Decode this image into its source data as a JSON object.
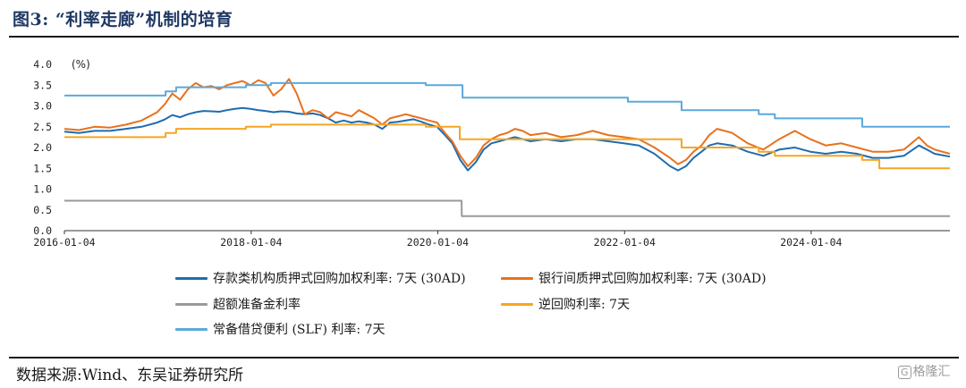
{
  "figure": {
    "title": "图3: “利率走廊”机制的培育",
    "source": "数据来源:Wind、东吴证券研究所",
    "watermark_box": "G",
    "watermark_text": "格隆汇"
  },
  "chart_data": {
    "type": "line",
    "xaxis": {
      "range": [
        "2016-01-04",
        "2025-06-30"
      ],
      "ticks": [
        "2016-01-04",
        "2018-01-04",
        "2020-01-04",
        "2022-01-04",
        "2024-01-04"
      ]
    },
    "yaxis": {
      "range": [
        0,
        4
      ],
      "ticks": [
        "0.0",
        "0.5",
        "1.0",
        "1.5",
        "2.0",
        "2.5",
        "3.0",
        "3.5",
        "4.0"
      ],
      "unit_label": "(%)"
    },
    "grid": false,
    "legend_position": "bottom",
    "series": [
      {
        "name": "存款类机构质押式回购加权利率: 7天 (30AD)",
        "color": "#1f6cb0",
        "points": [
          [
            "2016-01-04",
            2.38
          ],
          [
            "2016-03-01",
            2.35
          ],
          [
            "2016-05-01",
            2.4
          ],
          [
            "2016-07-01",
            2.4
          ],
          [
            "2016-09-01",
            2.45
          ],
          [
            "2016-11-01",
            2.5
          ],
          [
            "2017-01-01",
            2.6
          ],
          [
            "2017-02-01",
            2.68
          ],
          [
            "2017-03-01",
            2.78
          ],
          [
            "2017-04-01",
            2.73
          ],
          [
            "2017-05-01",
            2.8
          ],
          [
            "2017-06-01",
            2.85
          ],
          [
            "2017-07-01",
            2.88
          ],
          [
            "2017-08-01",
            2.87
          ],
          [
            "2017-09-01",
            2.86
          ],
          [
            "2017-10-01",
            2.9
          ],
          [
            "2017-11-01",
            2.93
          ],
          [
            "2017-12-01",
            2.95
          ],
          [
            "2018-01-01",
            2.93
          ],
          [
            "2018-02-01",
            2.9
          ],
          [
            "2018-03-01",
            2.88
          ],
          [
            "2018-04-01",
            2.85
          ],
          [
            "2018-05-01",
            2.87
          ],
          [
            "2018-06-01",
            2.86
          ],
          [
            "2018-07-01",
            2.82
          ],
          [
            "2018-08-01",
            2.8
          ],
          [
            "2018-09-01",
            2.82
          ],
          [
            "2018-10-01",
            2.78
          ],
          [
            "2018-11-01",
            2.7
          ],
          [
            "2018-12-01",
            2.6
          ],
          [
            "2019-01-01",
            2.65
          ],
          [
            "2019-02-01",
            2.6
          ],
          [
            "2019-03-01",
            2.63
          ],
          [
            "2019-04-01",
            2.6
          ],
          [
            "2019-05-01",
            2.55
          ],
          [
            "2019-06-01",
            2.45
          ],
          [
            "2019-07-01",
            2.6
          ],
          [
            "2019-08-01",
            2.62
          ],
          [
            "2019-09-01",
            2.65
          ],
          [
            "2019-10-01",
            2.68
          ],
          [
            "2019-11-01",
            2.62
          ],
          [
            "2019-12-01",
            2.55
          ],
          [
            "2020-01-01",
            2.5
          ],
          [
            "2020-02-01",
            2.3
          ],
          [
            "2020-03-01",
            2.1
          ],
          [
            "2020-04-01",
            1.7
          ],
          [
            "2020-05-01",
            1.45
          ],
          [
            "2020-06-01",
            1.65
          ],
          [
            "2020-07-01",
            1.95
          ],
          [
            "2020-08-01",
            2.1
          ],
          [
            "2020-09-01",
            2.15
          ],
          [
            "2020-10-01",
            2.2
          ],
          [
            "2020-11-01",
            2.25
          ],
          [
            "2020-12-01",
            2.2
          ],
          [
            "2021-01-01",
            2.15
          ],
          [
            "2021-03-01",
            2.2
          ],
          [
            "2021-05-01",
            2.15
          ],
          [
            "2021-07-01",
            2.2
          ],
          [
            "2021-09-01",
            2.2
          ],
          [
            "2021-11-01",
            2.15
          ],
          [
            "2022-01-01",
            2.1
          ],
          [
            "2022-03-01",
            2.05
          ],
          [
            "2022-05-01",
            1.85
          ],
          [
            "2022-07-01",
            1.55
          ],
          [
            "2022-08-01",
            1.45
          ],
          [
            "2022-09-01",
            1.55
          ],
          [
            "2022-10-01",
            1.75
          ],
          [
            "2022-11-01",
            1.9
          ],
          [
            "2022-12-01",
            2.05
          ],
          [
            "2023-01-01",
            2.1
          ],
          [
            "2023-03-01",
            2.05
          ],
          [
            "2023-05-01",
            1.9
          ],
          [
            "2023-07-01",
            1.8
          ],
          [
            "2023-09-01",
            1.95
          ],
          [
            "2023-11-01",
            2.0
          ],
          [
            "2024-01-01",
            1.9
          ],
          [
            "2024-03-01",
            1.85
          ],
          [
            "2024-05-01",
            1.9
          ],
          [
            "2024-07-01",
            1.85
          ],
          [
            "2024-09-01",
            1.75
          ],
          [
            "2024-11-01",
            1.75
          ],
          [
            "2025-01-01",
            1.8
          ],
          [
            "2025-03-01",
            2.05
          ],
          [
            "2025-04-01",
            1.95
          ],
          [
            "2025-05-01",
            1.85
          ],
          [
            "2025-06-30",
            1.78
          ]
        ]
      },
      {
        "name": "银行间质押式回购加权利率: 7天 (30AD)",
        "color": "#e8711d",
        "points": [
          [
            "2016-01-04",
            2.45
          ],
          [
            "2016-03-01",
            2.42
          ],
          [
            "2016-05-01",
            2.5
          ],
          [
            "2016-07-01",
            2.48
          ],
          [
            "2016-09-01",
            2.55
          ],
          [
            "2016-11-01",
            2.65
          ],
          [
            "2017-01-01",
            2.85
          ],
          [
            "2017-02-01",
            3.05
          ],
          [
            "2017-03-01",
            3.3
          ],
          [
            "2017-04-01",
            3.15
          ],
          [
            "2017-05-01",
            3.4
          ],
          [
            "2017-06-01",
            3.55
          ],
          [
            "2017-07-01",
            3.45
          ],
          [
            "2017-08-01",
            3.48
          ],
          [
            "2017-09-01",
            3.4
          ],
          [
            "2017-10-01",
            3.5
          ],
          [
            "2017-11-01",
            3.55
          ],
          [
            "2017-12-01",
            3.6
          ],
          [
            "2018-01-01",
            3.5
          ],
          [
            "2018-02-01",
            3.62
          ],
          [
            "2018-03-01",
            3.55
          ],
          [
            "2018-04-01",
            3.25
          ],
          [
            "2018-05-01",
            3.4
          ],
          [
            "2018-06-01",
            3.65
          ],
          [
            "2018-07-01",
            3.3
          ],
          [
            "2018-08-01",
            2.8
          ],
          [
            "2018-09-01",
            2.9
          ],
          [
            "2018-10-01",
            2.85
          ],
          [
            "2018-11-01",
            2.7
          ],
          [
            "2018-12-01",
            2.85
          ],
          [
            "2019-01-01",
            2.8
          ],
          [
            "2019-02-01",
            2.75
          ],
          [
            "2019-03-01",
            2.9
          ],
          [
            "2019-04-01",
            2.8
          ],
          [
            "2019-05-01",
            2.7
          ],
          [
            "2019-06-01",
            2.55
          ],
          [
            "2019-07-01",
            2.7
          ],
          [
            "2019-08-01",
            2.75
          ],
          [
            "2019-09-01",
            2.8
          ],
          [
            "2019-10-01",
            2.75
          ],
          [
            "2019-11-01",
            2.7
          ],
          [
            "2019-12-01",
            2.65
          ],
          [
            "2020-01-01",
            2.6
          ],
          [
            "2020-02-01",
            2.35
          ],
          [
            "2020-03-01",
            2.15
          ],
          [
            "2020-04-01",
            1.8
          ],
          [
            "2020-05-01",
            1.55
          ],
          [
            "2020-06-01",
            1.75
          ],
          [
            "2020-07-01",
            2.05
          ],
          [
            "2020-08-01",
            2.2
          ],
          [
            "2020-09-01",
            2.3
          ],
          [
            "2020-10-01",
            2.35
          ],
          [
            "2020-11-01",
            2.45
          ],
          [
            "2020-12-01",
            2.4
          ],
          [
            "2021-01-01",
            2.3
          ],
          [
            "2021-03-01",
            2.35
          ],
          [
            "2021-05-01",
            2.25
          ],
          [
            "2021-07-01",
            2.3
          ],
          [
            "2021-09-01",
            2.4
          ],
          [
            "2021-11-01",
            2.3
          ],
          [
            "2022-01-01",
            2.25
          ],
          [
            "2022-03-01",
            2.2
          ],
          [
            "2022-05-01",
            2.0
          ],
          [
            "2022-07-01",
            1.75
          ],
          [
            "2022-08-01",
            1.6
          ],
          [
            "2022-09-01",
            1.7
          ],
          [
            "2022-10-01",
            1.9
          ],
          [
            "2022-11-01",
            2.05
          ],
          [
            "2022-12-01",
            2.3
          ],
          [
            "2023-01-01",
            2.45
          ],
          [
            "2023-03-01",
            2.35
          ],
          [
            "2023-05-01",
            2.1
          ],
          [
            "2023-07-01",
            1.95
          ],
          [
            "2023-09-01",
            2.2
          ],
          [
            "2023-11-01",
            2.4
          ],
          [
            "2024-01-01",
            2.2
          ],
          [
            "2024-03-01",
            2.05
          ],
          [
            "2024-05-01",
            2.1
          ],
          [
            "2024-07-01",
            2.0
          ],
          [
            "2024-09-01",
            1.9
          ],
          [
            "2024-11-01",
            1.9
          ],
          [
            "2025-01-01",
            1.95
          ],
          [
            "2025-03-01",
            2.25
          ],
          [
            "2025-04-01",
            2.05
          ],
          [
            "2025-05-01",
            1.95
          ],
          [
            "2025-06-30",
            1.85
          ]
        ]
      },
      {
        "name": "超额准备金利率",
        "color": "#9a9a9a",
        "points": [
          [
            "2016-01-04",
            0.72
          ],
          [
            "2020-04-06",
            0.72
          ],
          [
            "2020-04-07",
            0.35
          ],
          [
            "2025-06-30",
            0.35
          ]
        ]
      },
      {
        "name": "逆回购利率: 7天",
        "color": "#f5a623",
        "points": [
          [
            "2016-01-04",
            2.25
          ],
          [
            "2017-02-03",
            2.25
          ],
          [
            "2017-02-03",
            2.35
          ],
          [
            "2017-03-16",
            2.35
          ],
          [
            "2017-03-16",
            2.45
          ],
          [
            "2017-12-14",
            2.45
          ],
          [
            "2017-12-14",
            2.5
          ],
          [
            "2018-03-22",
            2.5
          ],
          [
            "2018-03-22",
            2.55
          ],
          [
            "2019-11-18",
            2.55
          ],
          [
            "2019-11-18",
            2.5
          ],
          [
            "2020-03-30",
            2.5
          ],
          [
            "2020-03-30",
            2.2
          ],
          [
            "2022-08-15",
            2.2
          ],
          [
            "2022-08-15",
            2.0
          ],
          [
            "2023-06-13",
            2.0
          ],
          [
            "2023-06-13",
            1.9
          ],
          [
            "2023-08-15",
            1.9
          ],
          [
            "2023-08-15",
            1.8
          ],
          [
            "2024-07-22",
            1.8
          ],
          [
            "2024-07-22",
            1.7
          ],
          [
            "2024-09-27",
            1.7
          ],
          [
            "2024-09-27",
            1.5
          ],
          [
            "2025-06-30",
            1.5
          ]
        ]
      },
      {
        "name": "常备借贷便利 (SLF) 利率: 7天",
        "color": "#5aa9dc",
        "points": [
          [
            "2016-01-04",
            3.25
          ],
          [
            "2017-02-03",
            3.25
          ],
          [
            "2017-02-03",
            3.35
          ],
          [
            "2017-03-16",
            3.35
          ],
          [
            "2017-03-16",
            3.45
          ],
          [
            "2017-12-14",
            3.45
          ],
          [
            "2017-12-14",
            3.5
          ],
          [
            "2018-03-22",
            3.5
          ],
          [
            "2018-03-22",
            3.55
          ],
          [
            "2019-11-18",
            3.55
          ],
          [
            "2019-11-18",
            3.5
          ],
          [
            "2020-04-10",
            3.5
          ],
          [
            "2020-04-10",
            3.2
          ],
          [
            "2022-01-17",
            3.2
          ],
          [
            "2022-01-17",
            3.1
          ],
          [
            "2022-08-15",
            3.1
          ],
          [
            "2022-08-15",
            2.9
          ],
          [
            "2023-06-13",
            2.9
          ],
          [
            "2023-06-13",
            2.8
          ],
          [
            "2023-08-15",
            2.8
          ],
          [
            "2023-08-15",
            2.7
          ],
          [
            "2024-07-22",
            2.7
          ],
          [
            "2024-07-22",
            2.5
          ],
          [
            "2025-06-30",
            2.5
          ]
        ]
      }
    ]
  }
}
